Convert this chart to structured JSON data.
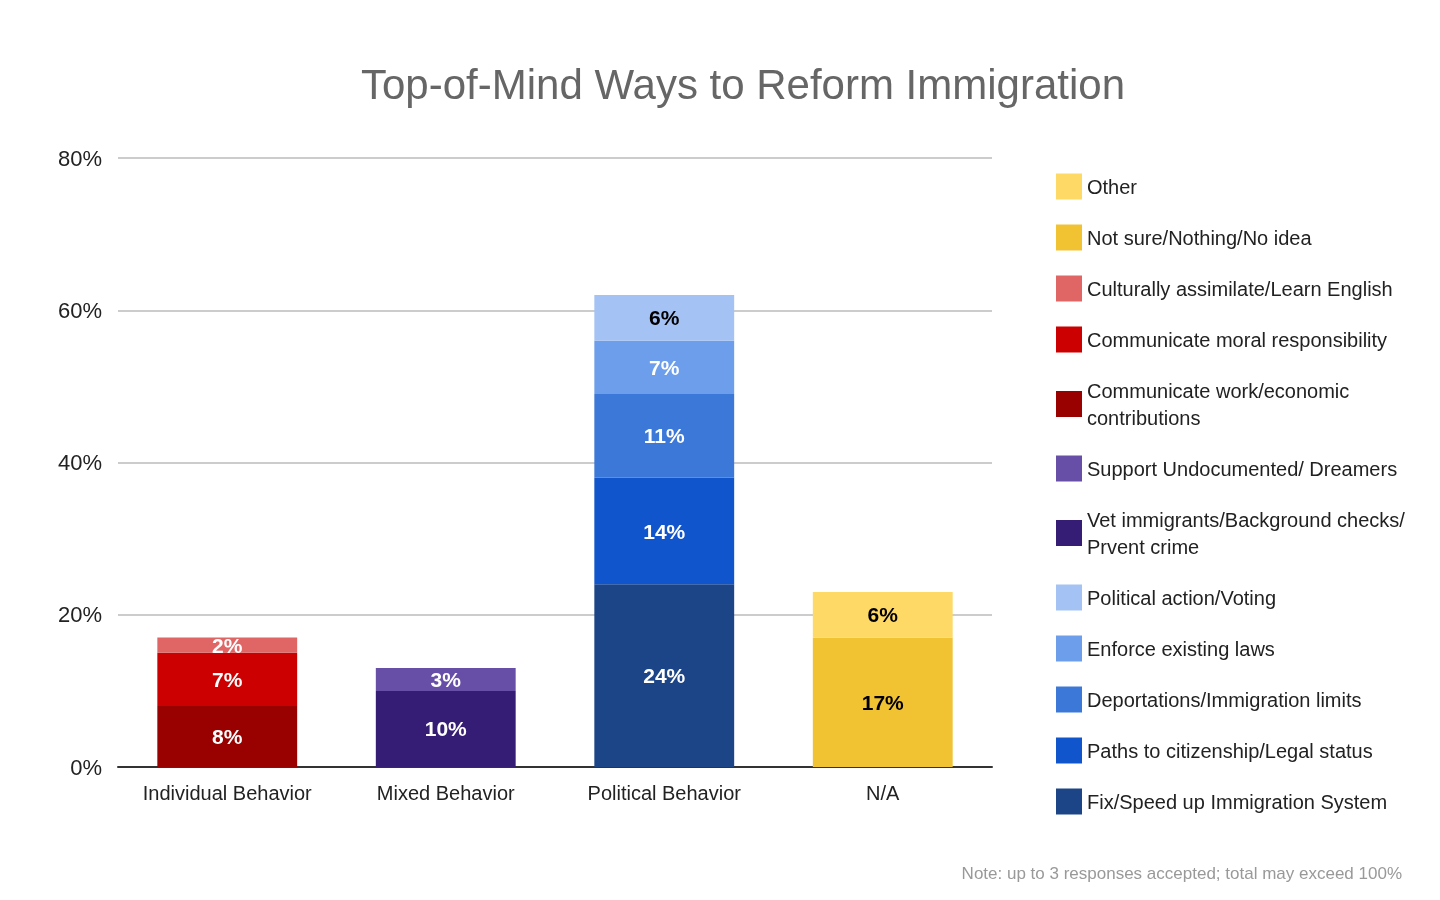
{
  "chart_data": {
    "type": "bar",
    "title": "Top-of-Mind Ways to Reform Immigration",
    "categories": [
      "Individual Behavior",
      "Mixed Behavior",
      "Political Behavior",
      "N/A"
    ],
    "stacked": true,
    "series": [
      {
        "name": "Fix/Speed up Immigration System",
        "color": "#1c4587",
        "values": [
          null,
          null,
          24,
          null
        ],
        "value_labels": [
          null,
          null,
          "24%",
          null
        ]
      },
      {
        "name": "Paths to citizenship/Legal status",
        "color": "#1155cc",
        "values": [
          null,
          null,
          14,
          null
        ],
        "value_labels": [
          null,
          null,
          "14%",
          null
        ]
      },
      {
        "name": "Deportations/Immigration limits",
        "color": "#3c78d8",
        "values": [
          null,
          null,
          11,
          null
        ],
        "value_labels": [
          null,
          null,
          "11%",
          null
        ]
      },
      {
        "name": "Enforce existing laws",
        "color": "#6d9eeb",
        "values": [
          null,
          null,
          7,
          null
        ],
        "value_labels": [
          null,
          null,
          "7%",
          null
        ]
      },
      {
        "name": "Political action/Voting",
        "color": "#a4c2f4",
        "values": [
          null,
          null,
          6,
          null
        ],
        "value_labels": [
          null,
          null,
          "6%",
          null
        ]
      },
      {
        "name": "Vet immigrants/Background checks/Prvent crime",
        "color": "#351c75",
        "values": [
          null,
          10,
          null,
          null
        ],
        "value_labels": [
          null,
          "10%",
          null,
          null
        ]
      },
      {
        "name": "Support Undocumented/ Dreamers",
        "color": "#674ea7",
        "values": [
          null,
          3,
          null,
          null
        ],
        "value_labels": [
          null,
          "3%",
          null,
          null
        ]
      },
      {
        "name": "Communicate work/economic contributions",
        "color": "#990000",
        "values": [
          8,
          null,
          null,
          null
        ],
        "value_labels": [
          "8%",
          null,
          null,
          null
        ]
      },
      {
        "name": "Communicate moral responsibility",
        "color": "#cc0000",
        "values": [
          7,
          null,
          null,
          null
        ],
        "value_labels": [
          "7%",
          null,
          null,
          null
        ]
      },
      {
        "name": "Culturally assimilate/Learn English",
        "color": "#e06666",
        "values": [
          2,
          null,
          null,
          null
        ],
        "value_labels": [
          "2%",
          null,
          null,
          null
        ]
      },
      {
        "name": "Not sure/Nothing/No idea",
        "color": "#f1c232",
        "values": [
          null,
          null,
          null,
          17
        ],
        "value_labels": [
          null,
          null,
          null,
          "17%"
        ]
      },
      {
        "name": "Other",
        "color": "#ffd966",
        "values": [
          null,
          null,
          null,
          6
        ],
        "value_labels": [
          null,
          null,
          null,
          "6%"
        ]
      }
    ],
    "ylim": [
      0,
      80
    ],
    "yticks": [
      {
        "value": 0,
        "label": "0%"
      },
      {
        "value": 20,
        "label": "20%"
      },
      {
        "value": 40,
        "label": "40%"
      },
      {
        "value": 60,
        "label": "60%"
      },
      {
        "value": 80,
        "label": "80%"
      }
    ],
    "grid": "y",
    "legend": "right",
    "annotations": [
      "Note: up to 3 responses accepted; total may exceed 100%"
    ]
  }
}
